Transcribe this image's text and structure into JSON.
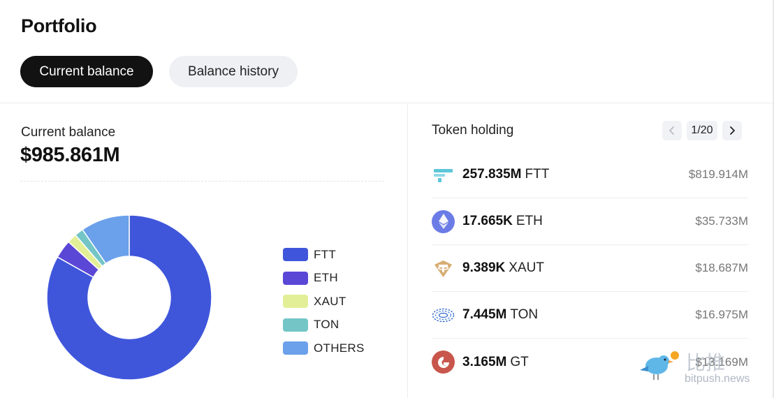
{
  "header": {
    "title": "Portfolio",
    "tabs": [
      {
        "label": "Current balance",
        "active": true
      },
      {
        "label": "Balance history",
        "active": false
      }
    ]
  },
  "balance": {
    "label": "Current balance",
    "value": "$985.861M"
  },
  "chart_data": {
    "type": "pie",
    "categories": [
      "FTT",
      "ETH",
      "XAUT",
      "TON",
      "OTHERS"
    ],
    "values": [
      819.914,
      35.733,
      18.687,
      16.975,
      94.552
    ],
    "colors": [
      "#3f56db",
      "#5a47d6",
      "#e3ef96",
      "#73c5c6",
      "#6ba0ea"
    ],
    "legend_position": "right",
    "donut": true
  },
  "token_holding": {
    "title": "Token holding",
    "page": "1/20",
    "tokens": [
      {
        "amount": "257.835M",
        "symbol": "FTT",
        "value": "$819.914M",
        "icon": "ftt-icon"
      },
      {
        "amount": "17.665K",
        "symbol": "ETH",
        "value": "$35.733M",
        "icon": "eth-icon"
      },
      {
        "amount": "9.389K",
        "symbol": "XAUT",
        "value": "$18.687M",
        "icon": "xaut-icon"
      },
      {
        "amount": "7.445M",
        "symbol": "TON",
        "value": "$16.975M",
        "icon": "ton-icon"
      },
      {
        "amount": "3.165M",
        "symbol": "GT",
        "value": "$13.169M",
        "icon": "gt-icon"
      }
    ]
  },
  "watermark": {
    "cn": "比推",
    "en": "bitpush.news"
  }
}
